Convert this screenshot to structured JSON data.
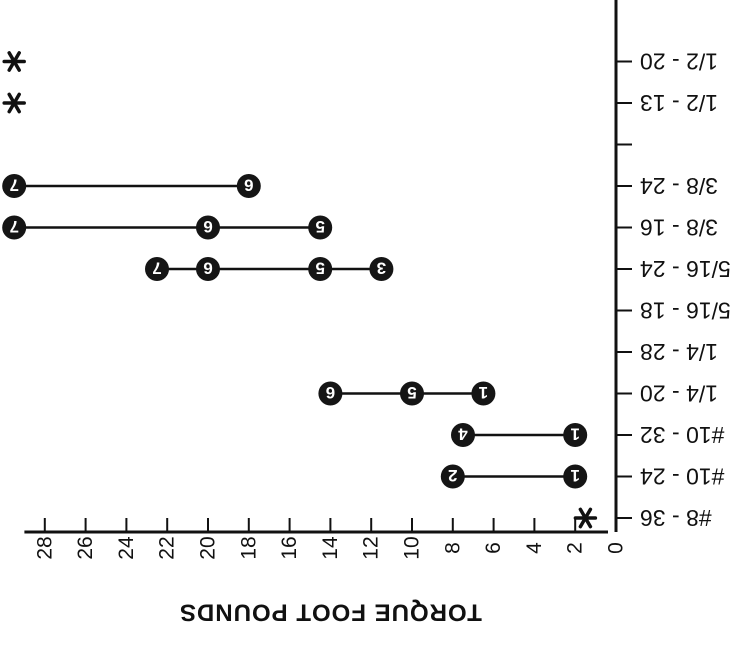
{
  "chart_data": {
    "type": "range-dot",
    "orientation": "rotated-180",
    "xlabel": "TORQUE FOOT POUNDS",
    "xlim": [
      0,
      29
    ],
    "xticks": [
      0,
      2,
      4,
      6,
      8,
      10,
      12,
      14,
      16,
      18,
      20,
      22,
      24,
      26,
      28
    ],
    "categories": [
      "#8 - 36",
      "#10 - 24",
      "#10 - 32",
      "1/4 - 20",
      "1/4 - 28",
      "5/16 - 18",
      "5/16 - 24",
      "3/8 - 16",
      "3/8 - 24",
      "1/2 - 13",
      "1/2 - 20"
    ],
    "category_ticks": [
      "#8 - 36",
      "#10 - 24",
      "#10 - 32",
      "1/4 - 20",
      "1/4 - 28",
      "5/16 - 18",
      "5/16 - 24",
      "3/8 - 16",
      "3/8 - 24",
      "",
      "1/2 - 13",
      "1/2 - 20"
    ],
    "series": [
      {
        "category": "#10 - 24",
        "points": [
          {
            "x": 2,
            "label": "1"
          },
          {
            "x": 8,
            "label": "2"
          }
        ]
      },
      {
        "category": "#10 - 32",
        "points": [
          {
            "x": 2,
            "label": "1"
          },
          {
            "x": 7.5,
            "label": "4"
          }
        ]
      },
      {
        "category": "1/4 - 20",
        "points": [
          {
            "x": 6.5,
            "label": "1"
          },
          {
            "x": 10,
            "label": "5"
          },
          {
            "x": 14,
            "label": "6"
          }
        ]
      },
      {
        "category": "5/16 - 24",
        "points": [
          {
            "x": 11.5,
            "label": "3"
          },
          {
            "x": 14.5,
            "label": "5"
          },
          {
            "x": 20,
            "label": "6"
          },
          {
            "x": 22.5,
            "label": "7"
          }
        ]
      },
      {
        "category": "3/8 - 16",
        "points": [
          {
            "x": 14.5,
            "label": "5"
          },
          {
            "x": 20,
            "label": "6"
          },
          {
            "x": 29.5,
            "label": "7"
          }
        ]
      },
      {
        "category": "3/8 - 24",
        "points": [
          {
            "x": 18,
            "label": "6"
          },
          {
            "x": 29.5,
            "label": "7"
          }
        ]
      }
    ],
    "markers": [
      {
        "category": "#8 - 36",
        "x": 1.5,
        "symbol": "*"
      },
      {
        "category": "1/2 - 13",
        "x": 29.5,
        "symbol": "*"
      },
      {
        "category": "1/2 - 20",
        "x": 29.5,
        "symbol": "*"
      }
    ]
  }
}
